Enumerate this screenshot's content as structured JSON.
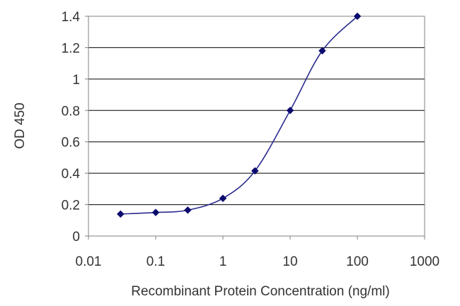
{
  "chart_data": {
    "type": "line",
    "title": "",
    "xlabel": "Recombinant Protein Concentration (ng/ml)",
    "ylabel": "OD 450",
    "x_scale": "log",
    "xlim": [
      0.01,
      1000
    ],
    "ylim": [
      0,
      1.4
    ],
    "x_ticks": [
      0.01,
      0.1,
      1,
      10,
      100,
      1000
    ],
    "x_tick_labels": [
      "0.01",
      "0.1",
      "1",
      "10",
      "100",
      "1000"
    ],
    "y_ticks": [
      0,
      0.2,
      0.4,
      0.6,
      0.8,
      1,
      1.2,
      1.4
    ],
    "y_tick_labels": [
      "0",
      "0.2",
      "0.4",
      "0.6",
      "0.8",
      "1",
      "1.2",
      "1.4"
    ],
    "grid": "horizontal",
    "legend": "none",
    "series": [
      {
        "x": [
          0.03,
          0.1,
          0.3,
          1,
          3,
          10,
          30,
          100
        ],
        "y": [
          0.14,
          0.15,
          0.165,
          0.24,
          0.415,
          0.8,
          1.18,
          1.4
        ],
        "color": "#2b2b8f",
        "marker_color": "#0b0b6e"
      }
    ],
    "colors": {
      "gridline": "#000000",
      "axis": "#808080",
      "text": "#333333"
    }
  }
}
